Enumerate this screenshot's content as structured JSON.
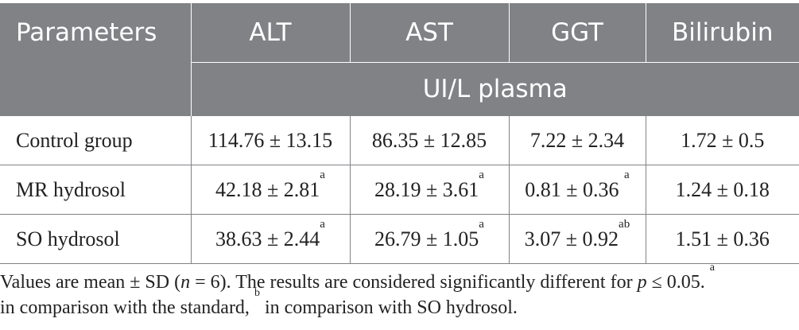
{
  "table": {
    "headers": [
      "Parameters",
      "ALT",
      "AST",
      "GGT",
      "Bilirubin"
    ],
    "unit_label": "UI/L plasma",
    "rows": [
      {
        "label": "Control group",
        "cells": [
          {
            "value": "114.76 ± 13.15",
            "sup": ""
          },
          {
            "value": "86.35 ± 12.85",
            "sup": ""
          },
          {
            "value": "7.22 ± 2.34",
            "sup": ""
          },
          {
            "value": "1.72 ± 0.5",
            "sup": ""
          }
        ]
      },
      {
        "label": "MR hydrosol",
        "cells": [
          {
            "value": "42.18 ± 2.81",
            "sup": "a"
          },
          {
            "value": "28.19 ± 3.61",
            "sup": "a"
          },
          {
            "value": "0.81 ± 0.36 ",
            "sup": "a"
          },
          {
            "value": "1.24 ± 0.18",
            "sup": ""
          }
        ]
      },
      {
        "label": "SO hydrosol",
        "cells": [
          {
            "value": "38.63 ± 2.44",
            "sup": "a"
          },
          {
            "value": "26.79 ± 1.05",
            "sup": "a"
          },
          {
            "value": "3.07 ± 0.92",
            "sup": "ab"
          },
          {
            "value": "1.51 ± 0.36",
            "sup": ""
          }
        ]
      }
    ]
  },
  "footnote": {
    "part1": "Values are mean ± SD (",
    "n_symbol": "n",
    "part2": " = 6). The results are considered significantly different for ",
    "p_symbol": "p",
    "part3": " ≤ 0.05. ",
    "sup_a": "a",
    "part4": " in comparison with the standard, ",
    "sup_b": "b",
    "part5": " in comparison with SO hydrosol."
  }
}
